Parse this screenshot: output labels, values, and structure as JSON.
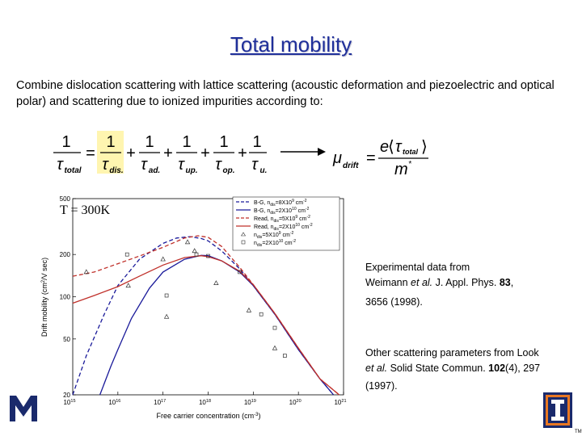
{
  "slide": {
    "title": "Total mobility",
    "intro": "Combine dislocation scattering with lattice scattering (acoustic deformation and piezoelectric and optical polar) and scattering due to ionized impurities according to:",
    "temperature_label": "T = 300K",
    "note1": {
      "line1": "Experimental data from",
      "line2_a": "Weimann ",
      "line2_i": "et al.",
      "line2_b": " J. Appl. Phys. ",
      "line2_bold": "83",
      "line2_c": ",",
      "line3": "3656 (1998)."
    },
    "note2": {
      "line1": "Other scattering parameters from Look",
      "line2_i": "et al.",
      "line2_b": " Solid State Commun. ",
      "line2_bold": "102",
      "line2_c": "(4), 297",
      "line3": "(1997)."
    },
    "highlight_color": "#fff5b0",
    "title_color": "#1f2f9a"
  },
  "equation": {
    "lhs_num": "1",
    "lhs_den_sym": "τ",
    "lhs_den_sub": "total",
    "eq": "=",
    "terms": [
      {
        "num": "1",
        "sym": "τ",
        "sub": "dis.",
        "highlight": true
      },
      {
        "num": "1",
        "sym": "τ",
        "sub": "ad.",
        "highlight": false
      },
      {
        "num": "1",
        "sym": "τ",
        "sub": "up.",
        "highlight": false
      },
      {
        "num": "1",
        "sym": "τ",
        "sub": "op.",
        "highlight": false
      },
      {
        "num": "1",
        "sym": "τ",
        "sub": "u.",
        "highlight": false
      }
    ],
    "plus": "+"
  },
  "mobility_eq": {
    "mu": "μ",
    "mu_sub": "drift",
    "eq": "=",
    "num_e": "e",
    "num_lang": "⟨",
    "num_tau": "τ",
    "num_sub": "total",
    "num_rang": "⟩",
    "den": "m",
    "den_sup": "*"
  },
  "chart_data": {
    "type": "line",
    "xlabel": "Free carrier concentration (cm",
    "xlabel_sup": "-3",
    "xlabel_end": ")",
    "ylabel": "Drift mobility (cm",
    "ylabel_sup": "2",
    "ylabel_end": "/V sec)",
    "xscale": "log",
    "yscale": "log",
    "xlim": [
      1000000000000000.0,
      1e+21
    ],
    "ylim": [
      20,
      500
    ],
    "x_ticks": [
      {
        "base": "10",
        "exp": "15"
      },
      {
        "base": "10",
        "exp": "16"
      },
      {
        "base": "10",
        "exp": "17"
      },
      {
        "base": "10",
        "exp": "18"
      },
      {
        "base": "10",
        "exp": "19"
      },
      {
        "base": "10",
        "exp": "20"
      },
      {
        "base": "10",
        "exp": "21"
      }
    ],
    "y_ticks": [
      "20",
      "50",
      "100",
      "200",
      "500"
    ],
    "legend": [
      {
        "label": "B-G, n",
        "sub": "dis",
        "tail": "=8X10",
        "exp": "9",
        "unit": " cm",
        "unit_exp": "-2"
      },
      {
        "label": "B-G, n",
        "sub": "dis",
        "tail": "=2X10",
        "exp": "10",
        "unit": " cm",
        "unit_exp": "-2"
      },
      {
        "label": "Read, n",
        "sub": "dis",
        "tail": "=5X10",
        "exp": "9",
        "unit": " cm",
        "unit_exp": "-2"
      },
      {
        "label": "Read, n",
        "sub": "dis",
        "tail": "=2X10",
        "exp": "10",
        "unit": " cm",
        "unit_exp": "-2"
      },
      {
        "label": "n",
        "sub": "dis",
        "tail": "=5X10",
        "exp": "9",
        "unit": " cm",
        "unit_exp": "-2"
      },
      {
        "label": "n",
        "sub": "dis",
        "tail": "=2X10",
        "exp": "10",
        "unit": " cm",
        "unit_exp": "-2"
      }
    ],
    "legend_placement": "top-right",
    "series": [
      {
        "style": "dashed",
        "color": "#1a1a9a",
        "points": [
          [
            1000000000000000.0,
            20
          ],
          [
            2000000000000000.0,
            38
          ],
          [
            5000000000000000.0,
            75
          ],
          [
            1e+16,
            120
          ],
          [
            3e+16,
            185
          ],
          [
            1e+17,
            240
          ],
          [
            2e+17,
            262
          ],
          [
            4e+17,
            268
          ],
          [
            7e+17,
            260
          ],
          [
            1e+18,
            250
          ],
          [
            2e+18,
            212
          ],
          [
            5e+18,
            158
          ],
          [
            1e+19,
            120
          ],
          [
            3e+19,
            75
          ],
          [
            1e+20,
            42
          ],
          [
            3e+20,
            26
          ],
          [
            6e+20,
            20
          ]
        ]
      },
      {
        "style": "solid",
        "color": "#1a1a9a",
        "points": [
          [
            4000000000000000.0,
            20
          ],
          [
            7000000000000000.0,
            32
          ],
          [
            1e+16,
            42
          ],
          [
            2e+16,
            70
          ],
          [
            5e+16,
            115
          ],
          [
            1e+17,
            150
          ],
          [
            3e+17,
            185
          ],
          [
            7e+17,
            197
          ],
          [
            1e+18,
            196
          ],
          [
            2e+18,
            180
          ],
          [
            5e+18,
            150
          ],
          [
            1e+19,
            120
          ],
          [
            3e+19,
            75
          ],
          [
            1e+20,
            42
          ],
          [
            3e+20,
            26
          ],
          [
            6e+20,
            20
          ]
        ]
      },
      {
        "style": "dashed",
        "color": "#c0302a",
        "points": [
          [
            1000000000000000.0,
            140
          ],
          [
            3000000000000000.0,
            150
          ],
          [
            1e+16,
            172
          ],
          [
            3e+16,
            195
          ],
          [
            1e+17,
            225
          ],
          [
            3e+17,
            262
          ],
          [
            6e+17,
            272
          ],
          [
            1e+18,
            265
          ],
          [
            2e+18,
            228
          ],
          [
            5e+18,
            162
          ],
          [
            1e+19,
            122
          ],
          [
            3e+19,
            76
          ],
          [
            1e+20,
            43
          ],
          [
            3e+20,
            26
          ],
          [
            8e+20,
            20
          ]
        ]
      },
      {
        "style": "solid",
        "color": "#c0302a",
        "points": [
          [
            1000000000000000.0,
            90
          ],
          [
            3000000000000000.0,
            102
          ],
          [
            1e+16,
            118
          ],
          [
            3e+16,
            140
          ],
          [
            1e+17,
            168
          ],
          [
            3e+17,
            190
          ],
          [
            7e+17,
            196
          ],
          [
            1e+18,
            193
          ],
          [
            2e+18,
            180
          ],
          [
            5e+18,
            152
          ],
          [
            1e+19,
            122
          ],
          [
            3e+19,
            76
          ],
          [
            1e+20,
            43
          ],
          [
            3e+20,
            26
          ],
          [
            8e+20,
            20
          ]
        ]
      },
      {
        "style": "markers",
        "marker": "triangle",
        "points": [
          [
            2000000000000000.0,
            150
          ],
          [
            1.7e+16,
            120
          ],
          [
            1e+17,
            185
          ],
          [
            1.2e+17,
            72
          ],
          [
            3.5e+17,
            245
          ],
          [
            5e+17,
            212
          ],
          [
            1.5e+18,
            125
          ],
          [
            8e+18,
            80
          ],
          [
            3e+19,
            43
          ]
        ]
      },
      {
        "style": "markers",
        "marker": "square",
        "points": [
          [
            1.6e+16,
            200
          ],
          [
            1.2e+17,
            102
          ],
          [
            5.5e+17,
            200
          ],
          [
            1e+18,
            195
          ],
          [
            5e+18,
            150
          ],
          [
            1.5e+19,
            75
          ],
          [
            3e+19,
            60
          ],
          [
            5e+19,
            38
          ]
        ]
      }
    ]
  }
}
